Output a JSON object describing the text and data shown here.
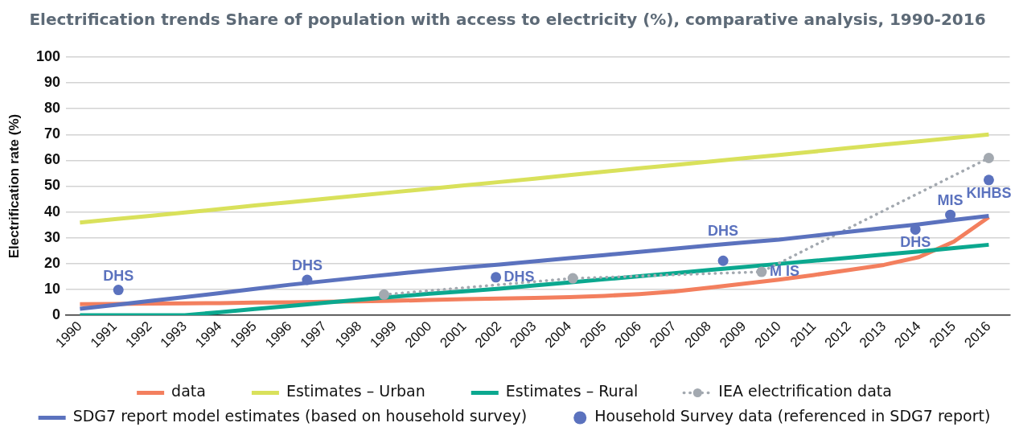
{
  "chart_data": {
    "type": "line",
    "title": "Electrification trends Share of population with access to electricity (%), comparative analysis, 1990-2016",
    "ylabel": "Electrification rate (%)",
    "x": [
      1990,
      1991,
      1992,
      1993,
      1994,
      1995,
      1996,
      1997,
      1998,
      1999,
      2000,
      2001,
      2002,
      2003,
      2004,
      2005,
      2006,
      2007,
      2008,
      2009,
      2010,
      2011,
      2012,
      2013,
      2014,
      2015,
      2016
    ],
    "xlim": [
      1989.6,
      2016.6
    ],
    "xticks": [
      1990,
      1991,
      1992,
      1993,
      1994,
      1995,
      1996,
      1997,
      1998,
      1999,
      2000,
      2001,
      2002,
      2003,
      2004,
      2005,
      2006,
      2007,
      2008,
      2009,
      2010,
      2011,
      2012,
      2013,
      2014,
      2015,
      2016
    ],
    "ylim": [
      0,
      100
    ],
    "yticks": [
      0,
      10,
      20,
      30,
      40,
      50,
      60,
      70,
      80,
      90,
      100
    ],
    "grid": "y",
    "legend": "bottom",
    "series": [
      {
        "name": "data",
        "color": "#f37f5e",
        "marker": "none",
        "values": [
          4.3,
          4.4,
          4.5,
          4.6,
          4.7,
          4.9,
          5.0,
          5.2,
          5.4,
          5.6,
          5.9,
          6.2,
          6.5,
          6.7,
          7.0,
          7.5,
          8.2,
          9.2,
          10.7,
          12.2,
          13.8,
          15.6,
          17.5,
          19.5,
          22.5,
          28.5,
          38.0
        ]
      },
      {
        "name": "Estimates – Urban",
        "color": "#d9e15b",
        "marker": "none",
        "values": [
          35.9,
          37.2,
          38.5,
          39.8,
          41.1,
          42.5,
          43.8,
          45.1,
          46.4,
          47.7,
          49.0,
          50.3,
          51.6,
          52.9,
          54.3,
          55.6,
          56.9,
          58.2,
          59.5,
          60.8,
          62.1,
          63.4,
          64.8,
          66.1,
          67.4,
          68.7,
          70.0
        ]
      },
      {
        "name": "Estimates – Rural",
        "color": "#0ba88f",
        "marker": "none",
        "values": [
          0,
          0,
          0,
          0,
          1.2,
          2.4,
          3.6,
          4.8,
          6.0,
          7.2,
          8.3,
          9.3,
          10.3,
          11.5,
          12.7,
          13.9,
          15.1,
          16.3,
          17.5,
          18.7,
          19.9,
          21.1,
          22.3,
          23.5,
          24.7,
          26.0,
          27.3
        ]
      },
      {
        "name": "IEA electrification data",
        "color": "#a3a9b0",
        "marker": "circle",
        "line_style": "dotted",
        "x": [
          1998.7,
          2004.1,
          2009.5,
          2016
        ],
        "values": [
          8.0,
          14.3,
          16.8,
          60.9
        ]
      },
      {
        "name": "SDG7 report model estimates (based on household survey)",
        "color": "#5b72be",
        "marker": "none",
        "values": [
          2.5,
          4.0,
          5.5,
          7.0,
          8.6,
          10.2,
          11.8,
          13.2,
          14.6,
          16.0,
          17.3,
          18.5,
          19.6,
          20.9,
          22.1,
          23.3,
          24.5,
          25.8,
          27.0,
          28.2,
          29.3,
          30.8,
          32.3,
          33.8,
          35.2,
          36.9,
          38.5
        ]
      },
      {
        "name": "Household Survey data (referenced in SDG7 report)",
        "type": "scatter",
        "color": "#5b72be",
        "marker": "circle",
        "x": [
          1991.1,
          1996.5,
          2001.9,
          2008.4,
          2013.9,
          2014.9,
          2016.0
        ],
        "values": [
          9.8,
          13.7,
          14.7,
          21.1,
          33.2,
          38.9,
          52.4
        ],
        "value_labels": [
          "DHS",
          "DHS",
          "DHS",
          "DHS",
          "DHS",
          "MIS",
          "KIHBS"
        ]
      }
    ],
    "annotations": [
      {
        "text": "M IS",
        "x": 2009.5,
        "y": 16.8
      }
    ]
  }
}
